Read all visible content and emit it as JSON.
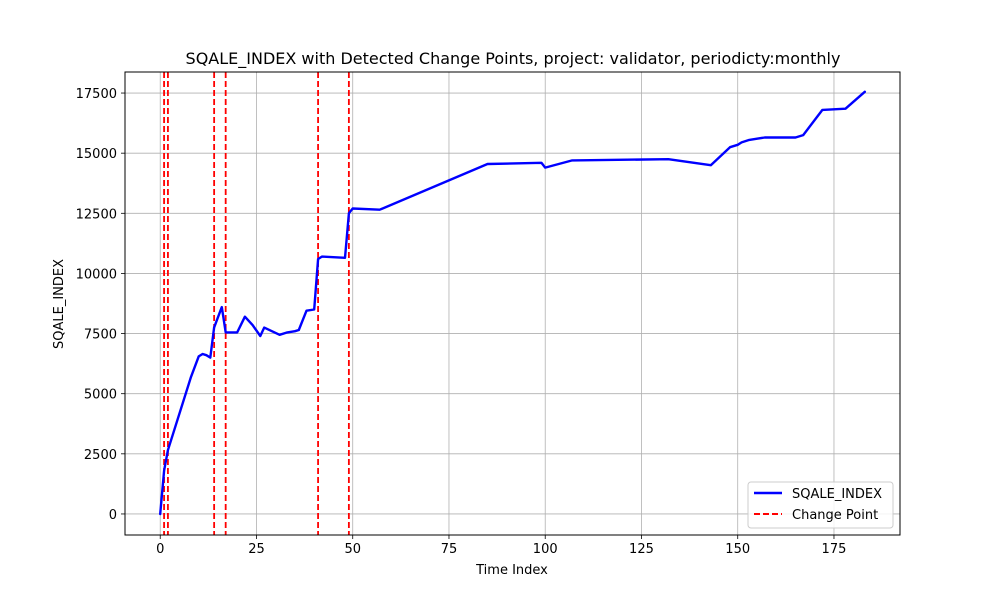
{
  "chart_data": {
    "type": "line",
    "title": "SQALE_INDEX with Detected Change Points, project: validator, periodicty:monthly",
    "xlabel": "Time Index",
    "ylabel": "SQALE_INDEX",
    "xlim": [
      -9.15,
      192.15
    ],
    "ylim": [
      -875,
      18375
    ],
    "xticks": [
      0,
      25,
      50,
      75,
      100,
      125,
      150,
      175
    ],
    "xtick_labels": [
      "0",
      "25",
      "50",
      "75",
      "100",
      "125",
      "150",
      "175"
    ],
    "yticks": [
      0,
      2500,
      5000,
      7500,
      10000,
      12500,
      15000,
      17500
    ],
    "ytick_labels": [
      "0",
      "2500",
      "5000",
      "7500",
      "10000",
      "12500",
      "15000",
      "17500"
    ],
    "grid": true,
    "legend_position": "lower-right",
    "series": [
      {
        "name": "SQALE_INDEX",
        "color": "#0000ff",
        "style": "solid",
        "x": [
          0,
          1,
          2,
          8,
          10,
          11,
          12,
          13,
          14,
          16,
          17,
          20,
          22,
          24,
          26,
          27,
          31,
          33,
          35,
          36,
          38,
          40,
          41,
          42,
          48,
          49,
          50,
          57,
          85,
          99,
          100,
          107,
          132,
          143,
          148,
          150,
          151,
          153,
          155,
          157,
          165,
          167,
          172,
          178,
          183
        ],
        "y": [
          0,
          1800,
          2650,
          5700,
          6550,
          6650,
          6600,
          6500,
          7750,
          8600,
          7550,
          7550,
          8200,
          7850,
          7400,
          7750,
          7450,
          7550,
          7600,
          7650,
          8450,
          8500,
          10600,
          10700,
          10650,
          12500,
          12700,
          12650,
          14550,
          14600,
          14400,
          14700,
          14750,
          14500,
          15250,
          15350,
          15450,
          15550,
          15600,
          15650,
          15650,
          15750,
          16800,
          16850,
          17550
        ]
      }
    ],
    "change_points": {
      "name": "Change Point",
      "color": "#ff0000",
      "style": "dashed",
      "x": [
        1,
        2,
        14,
        17,
        41,
        49
      ]
    }
  }
}
